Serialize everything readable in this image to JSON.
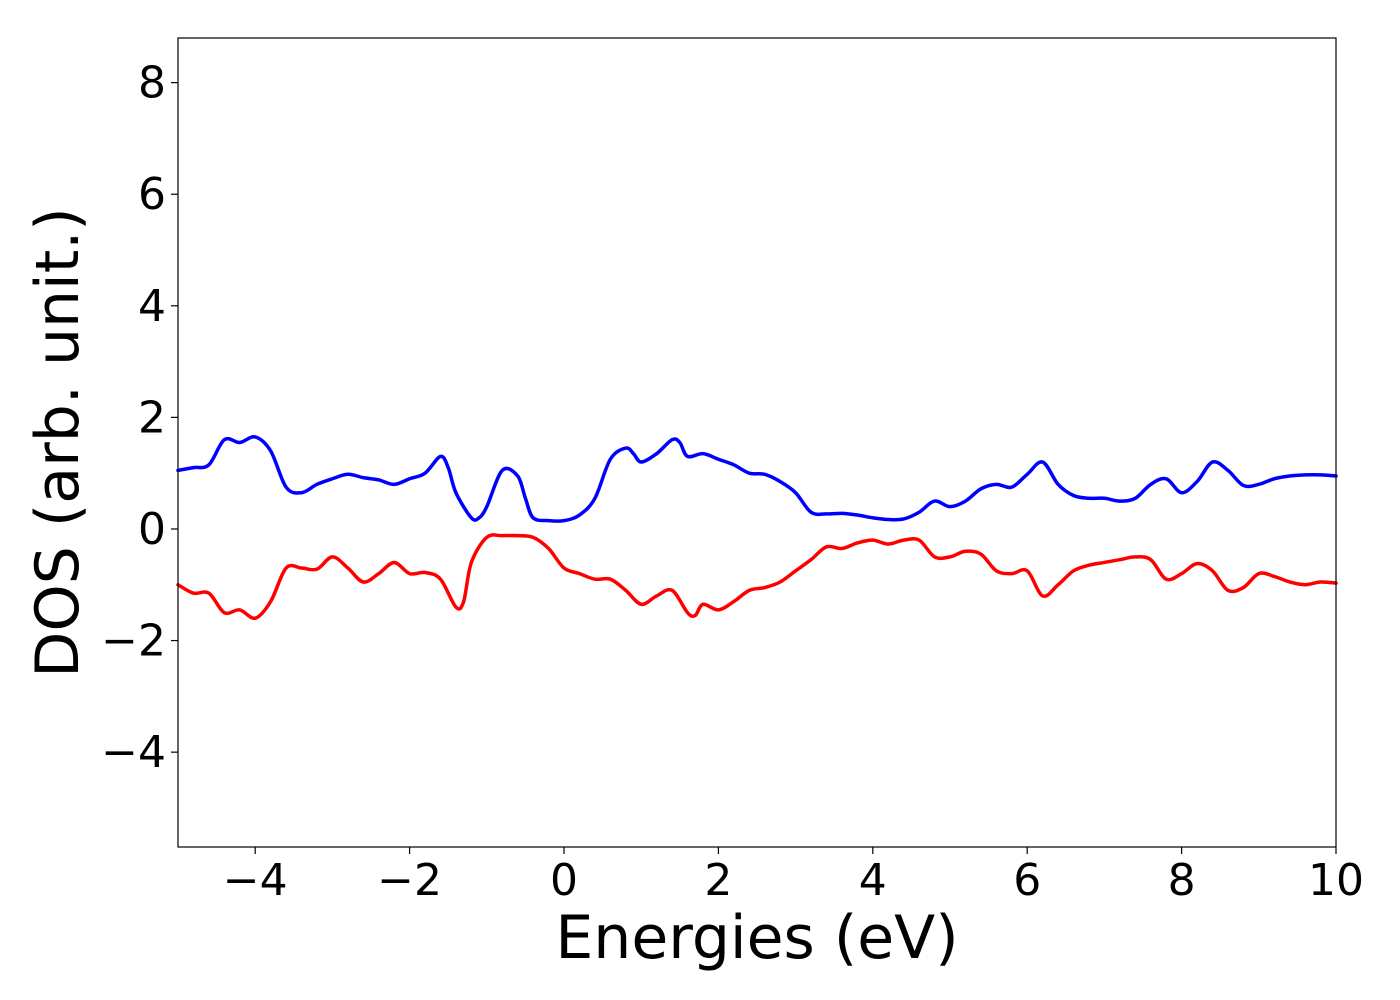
{
  "chart_data": {
    "type": "line",
    "title": "",
    "xlabel": "Energies (eV)",
    "ylabel": "DOS (arb. unit.)",
    "xlim": [
      -5,
      10
    ],
    "ylim": [
      -5.7,
      8.8
    ],
    "grid": false,
    "x_ticks": [
      -4,
      -2,
      0,
      2,
      4,
      6,
      8,
      10
    ],
    "x_tick_labels": [
      "−4",
      "−2",
      "0",
      "2",
      "4",
      "6",
      "8",
      "10"
    ],
    "y_ticks": [
      -4,
      -2,
      0,
      2,
      4,
      6,
      8
    ],
    "y_tick_labels": [
      "−4",
      "−2",
      "0",
      "2",
      "4",
      "6",
      "8"
    ],
    "series": [
      {
        "color": "#0000ff",
        "x": [
          -5.0,
          -4.8,
          -4.6,
          -4.4,
          -4.2,
          -4.0,
          -3.8,
          -3.6,
          -3.4,
          -3.2,
          -3.0,
          -2.8,
          -2.6,
          -2.4,
          -2.2,
          -2.0,
          -1.8,
          -1.6,
          -1.5,
          -1.4,
          -1.2,
          -1.1,
          -1.0,
          -0.8,
          -0.6,
          -0.5,
          -0.4,
          -0.2,
          0.0,
          0.2,
          0.4,
          0.6,
          0.8,
          0.9,
          1.0,
          1.2,
          1.4,
          1.5,
          1.6,
          1.8,
          2.0,
          2.2,
          2.4,
          2.6,
          2.8,
          3.0,
          3.2,
          3.4,
          3.6,
          3.8,
          4.0,
          4.2,
          4.4,
          4.6,
          4.8,
          5.0,
          5.2,
          5.4,
          5.6,
          5.8,
          6.0,
          6.2,
          6.4,
          6.6,
          6.8,
          7.0,
          7.2,
          7.4,
          7.6,
          7.8,
          8.0,
          8.2,
          8.4,
          8.6,
          8.8,
          9.0,
          9.2,
          9.4,
          9.6,
          9.8,
          10.0
        ],
        "y": [
          1.05,
          1.1,
          1.15,
          1.6,
          1.55,
          1.65,
          1.4,
          0.75,
          0.65,
          0.8,
          0.9,
          0.98,
          0.92,
          0.88,
          0.8,
          0.9,
          1.0,
          1.3,
          1.1,
          0.65,
          0.2,
          0.2,
          0.4,
          1.05,
          0.95,
          0.55,
          0.2,
          0.15,
          0.15,
          0.25,
          0.55,
          1.25,
          1.45,
          1.35,
          1.2,
          1.35,
          1.6,
          1.55,
          1.3,
          1.35,
          1.25,
          1.15,
          1.0,
          0.98,
          0.85,
          0.65,
          0.3,
          0.27,
          0.28,
          0.25,
          0.2,
          0.17,
          0.18,
          0.3,
          0.5,
          0.4,
          0.5,
          0.72,
          0.8,
          0.75,
          0.98,
          1.2,
          0.8,
          0.6,
          0.55,
          0.55,
          0.5,
          0.55,
          0.8,
          0.9,
          0.65,
          0.85,
          1.2,
          1.05,
          0.78,
          0.8,
          0.9,
          0.95,
          0.97,
          0.97,
          0.95
        ]
      },
      {
        "color": "#ff0000",
        "x": [
          -5.0,
          -4.8,
          -4.6,
          -4.4,
          -4.2,
          -4.0,
          -3.8,
          -3.6,
          -3.4,
          -3.2,
          -3.0,
          -2.8,
          -2.6,
          -2.4,
          -2.2,
          -2.0,
          -1.8,
          -1.6,
          -1.4,
          -1.3,
          -1.2,
          -1.0,
          -0.8,
          -0.6,
          -0.4,
          -0.2,
          0.0,
          0.2,
          0.4,
          0.6,
          0.8,
          1.0,
          1.2,
          1.4,
          1.6,
          1.7,
          1.8,
          2.0,
          2.2,
          2.4,
          2.6,
          2.8,
          3.0,
          3.2,
          3.4,
          3.6,
          3.8,
          4.0,
          4.2,
          4.4,
          4.6,
          4.8,
          5.0,
          5.2,
          5.4,
          5.6,
          5.8,
          6.0,
          6.2,
          6.4,
          6.6,
          6.8,
          7.0,
          7.2,
          7.4,
          7.6,
          7.8,
          8.0,
          8.2,
          8.4,
          8.6,
          8.8,
          9.0,
          9.2,
          9.4,
          9.6,
          9.8,
          10.0
        ],
        "y": [
          -1.0,
          -1.15,
          -1.15,
          -1.5,
          -1.45,
          -1.6,
          -1.3,
          -0.7,
          -0.7,
          -0.72,
          -0.5,
          -0.7,
          -0.95,
          -0.8,
          -0.6,
          -0.8,
          -0.78,
          -0.9,
          -1.4,
          -1.3,
          -0.6,
          -0.15,
          -0.12,
          -0.12,
          -0.15,
          -0.35,
          -0.7,
          -0.8,
          -0.9,
          -0.9,
          -1.1,
          -1.35,
          -1.2,
          -1.1,
          -1.5,
          -1.55,
          -1.35,
          -1.45,
          -1.3,
          -1.1,
          -1.05,
          -0.95,
          -0.75,
          -0.55,
          -0.32,
          -0.35,
          -0.25,
          -0.2,
          -0.27,
          -0.2,
          -0.2,
          -0.5,
          -0.5,
          -0.4,
          -0.45,
          -0.75,
          -0.8,
          -0.75,
          -1.2,
          -1.0,
          -0.75,
          -0.65,
          -0.6,
          -0.55,
          -0.5,
          -0.55,
          -0.9,
          -0.8,
          -0.62,
          -0.75,
          -1.1,
          -1.05,
          -0.8,
          -0.85,
          -0.95,
          -1.0,
          -0.95,
          -0.97
        ]
      }
    ]
  }
}
